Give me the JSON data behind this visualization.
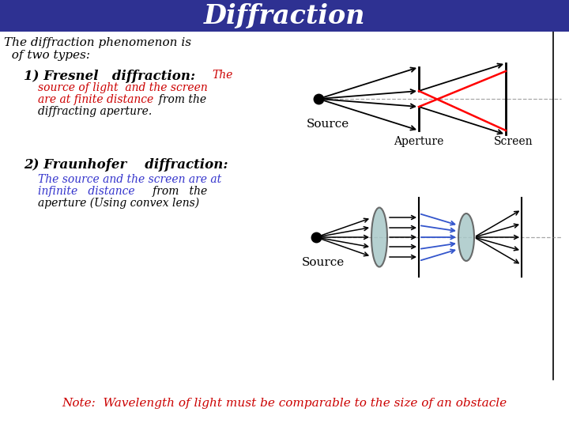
{
  "title": "Diffraction",
  "title_bg": "#2E3192",
  "title_color": "#FFFFFF",
  "bg_color": "#FFFFFF",
  "note": "Note:  Wavelength of light must be comparable to the size of an obstacle",
  "note_color": "#CC0000",
  "aperture_label": "Aperture",
  "screen_label": "Screen",
  "source_label": "Source",
  "fig_width": 7.2,
  "fig_height": 5.4,
  "dpi": 100
}
